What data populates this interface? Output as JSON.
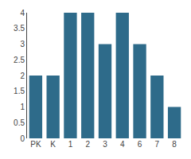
{
  "chart_data": {
    "type": "bar",
    "categories": [
      "PK",
      "K",
      "1",
      "2",
      "3",
      "4",
      "6",
      "7",
      "8"
    ],
    "values": [
      2,
      2,
      4,
      4,
      3,
      4,
      3,
      2,
      1
    ],
    "color": "#2e6b8a",
    "ylim": [
      0,
      4
    ],
    "yticks": [
      0,
      0.5,
      1,
      1.5,
      2,
      2.5,
      3,
      3.5,
      4
    ],
    "grid": false
  }
}
